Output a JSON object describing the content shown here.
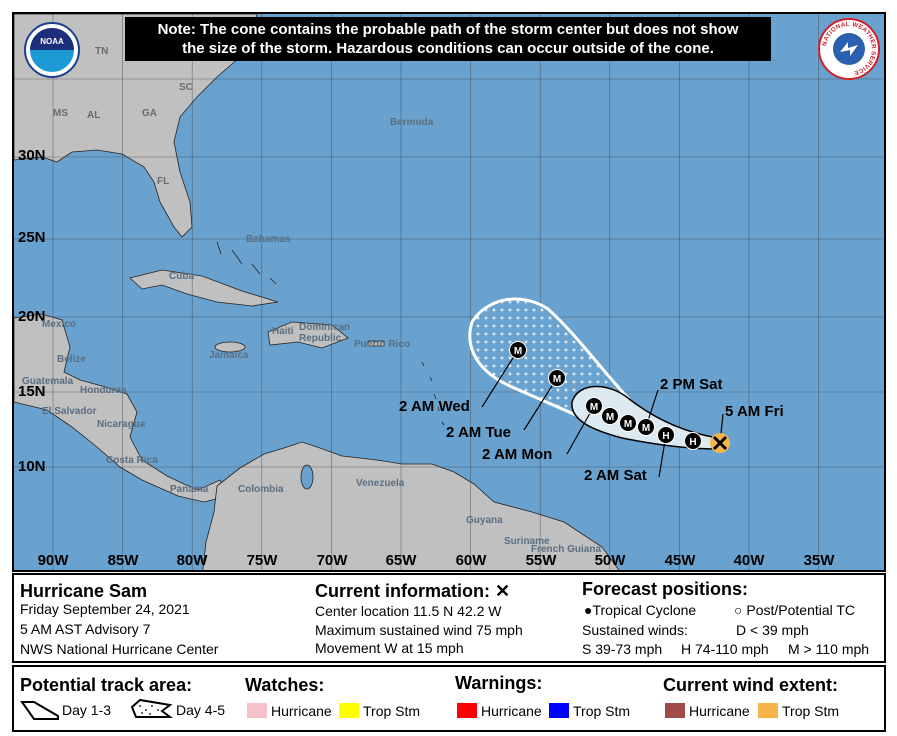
{
  "note": {
    "line1": "Note: The cone contains the probable path of the storm center but does not show",
    "line2": "the size of the storm. Hazardous conditions can occur outside of the cone."
  },
  "logos": {
    "noaa": "NOAA",
    "nws": "NATIONAL WEATHER SERVICE"
  },
  "map": {
    "lat_labels": [
      "30N",
      "25N",
      "20N",
      "15N",
      "10N"
    ],
    "lon_labels": [
      "90W",
      "85W",
      "80W",
      "75W",
      "70W",
      "65W",
      "60W",
      "55W",
      "50W",
      "45W",
      "40W",
      "35W"
    ],
    "state_labels": [
      "TN",
      "SC",
      "MS",
      "AL",
      "GA",
      "FL"
    ],
    "place_labels": [
      "Bermuda",
      "Bahamas",
      "Cuba",
      "Mexico",
      "Dominican Republic",
      "Puerto Rico",
      "Jamaica",
      "Haiti",
      "Belize",
      "Guatemala",
      "Honduras",
      "El Salvador",
      "Nicaragua",
      "Costa Rica",
      "Panama",
      "Colombia",
      "Venezuela",
      "Guyana",
      "Suriname",
      "French Guiana"
    ],
    "colors": {
      "ocean": "#6aa2cf",
      "land": "#c0c0c0",
      "cone_day13": "#dde9f1",
      "current_wind_trop_stm": "#f6b54a"
    }
  },
  "forecast": {
    "points": [
      {
        "label": "5 AM Fri",
        "symbol": "X",
        "lat": 11.5,
        "lon": 42.2
      },
      {
        "label": "",
        "symbol": "H"
      },
      {
        "label": "2 AM Sat",
        "symbol": "H"
      },
      {
        "label": "2 PM Sat",
        "symbol": "M"
      },
      {
        "label": "",
        "symbol": "M"
      },
      {
        "label": "",
        "symbol": "M"
      },
      {
        "label": "2 AM Mon",
        "symbol": "M"
      },
      {
        "label": "2 AM Tue",
        "symbol": "M"
      },
      {
        "label": "2 AM Wed",
        "symbol": "M"
      }
    ]
  },
  "info": {
    "storm_name": "Hurricane Sam",
    "date": "Friday September 24, 2021",
    "advisory": "5 AM AST Advisory 7",
    "center": "NWS National Hurricane Center",
    "current_title": "Current information:",
    "current_icon": "x-icon",
    "location": "Center location 11.5 N 42.2 W",
    "max_wind": "Maximum sustained wind 75 mph",
    "movement": "Movement W at 15 mph",
    "forecast_title": "Forecast positions:",
    "tropical_cyclone": "Tropical Cyclone",
    "post_potential": "Post/Potential TC",
    "sustained_winds": "Sustained winds:",
    "d_range": "D < 39 mph",
    "s_range": "S 39-73 mph",
    "h_range": "H 74-110 mph",
    "m_range": "M > 110 mph"
  },
  "legend": {
    "track_title": "Potential track area:",
    "day13": "Day 1-3",
    "day45": "Day 4-5",
    "watches_title": "Watches:",
    "watch_hurricane": "Hurricane",
    "watch_tropstm": "Trop Stm",
    "warnings_title": "Warnings:",
    "warn_hurricane": "Hurricane",
    "warn_tropstm": "Trop Stm",
    "wind_title": "Current wind extent:",
    "wind_hurricane": "Hurricane",
    "wind_tropstm": "Trop Stm",
    "colors": {
      "watch_hurricane": "#f7c1cb",
      "watch_tropstm": "#ffff00",
      "warn_hurricane": "#ff0000",
      "warn_tropstm": "#0000ff",
      "wind_hurricane": "#a04a4a",
      "wind_tropstm": "#f6b54a"
    }
  }
}
